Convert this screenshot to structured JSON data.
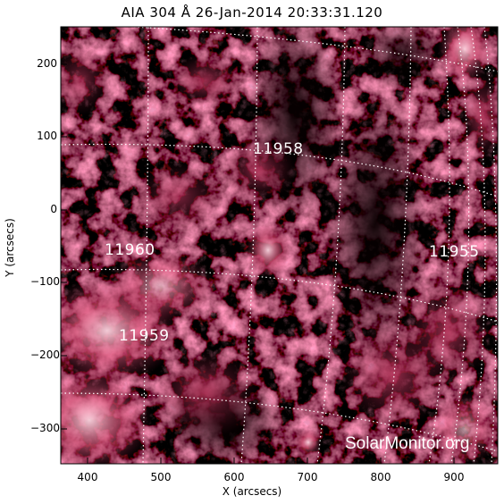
{
  "title": "AIA 304 Å 26-Jan-2014 20:33:31.120",
  "xlabel": "X (arcsecs)",
  "ylabel": "Y (arcsecs)",
  "y_ticks": [
    "200",
    "100",
    "0",
    "−100",
    "−200",
    "−300"
  ],
  "x_ticks": [
    "400",
    "500",
    "600",
    "700",
    "800",
    "900"
  ],
  "regions": [
    "11958",
    "11960",
    "11955",
    "11959"
  ],
  "watermark": "SolarMonitor.org",
  "colors": {
    "plasma_dark": "#0d0003",
    "plasma_mid": "#8a1437",
    "plasma_bright": "#ffd6e2",
    "grid": "#ffffff"
  }
}
